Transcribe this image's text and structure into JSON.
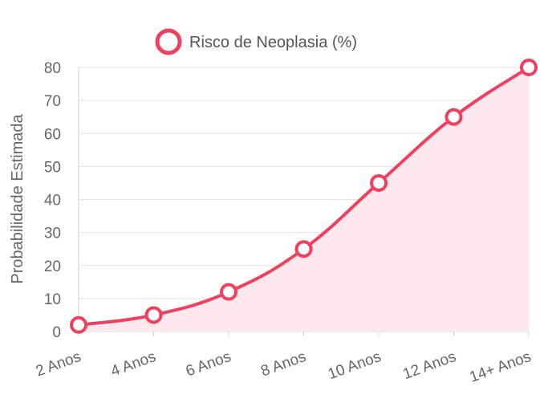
{
  "chart_data": {
    "type": "line",
    "title": "",
    "xlabel": "",
    "ylabel": "Probabilidade Estimada",
    "categories": [
      "2 Anos",
      "4 Anos",
      "6 Anos",
      "8 Anos",
      "10 Anos",
      "12 Anos",
      "14+ Anos"
    ],
    "series": [
      {
        "name": "Risco de Neoplasia (%)",
        "values": [
          2,
          5,
          12,
          25,
          45,
          65,
          80
        ]
      }
    ],
    "ylim": [
      0,
      80
    ],
    "yticks": [
      0,
      10,
      20,
      30,
      40,
      50,
      60,
      70,
      80
    ],
    "grid": true,
    "fill": true,
    "legend": "top-center",
    "colors": {
      "line": "#f0405f",
      "fill": "#fde8ee"
    }
  }
}
